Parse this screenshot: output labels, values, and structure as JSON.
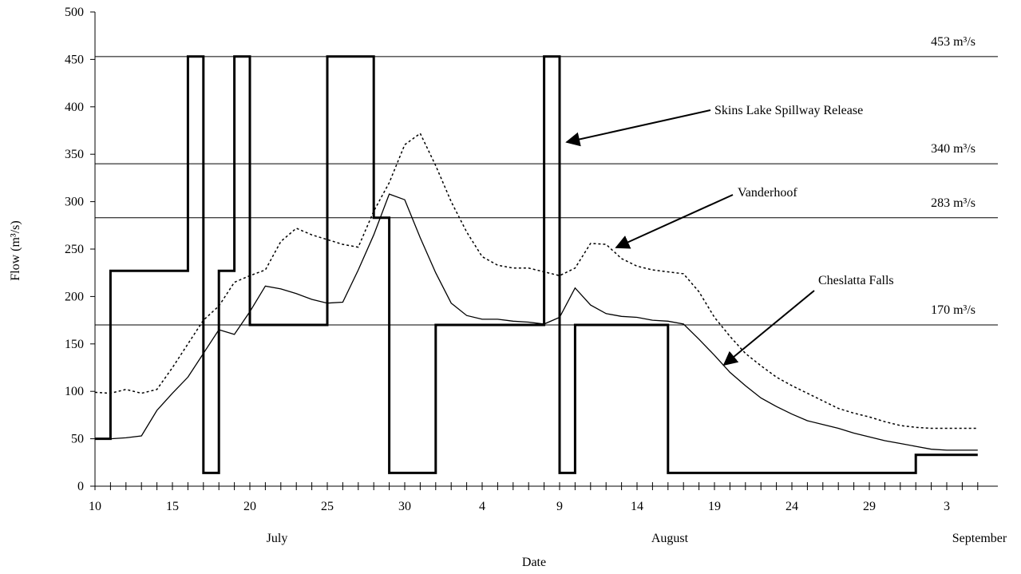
{
  "chart_data": {
    "type": "line",
    "xlabel": "Date",
    "ylabel": "Flow (m³/s)",
    "ylim": [
      0,
      500
    ],
    "yticks": [
      0,
      50,
      100,
      150,
      200,
      250,
      300,
      350,
      400,
      450,
      500
    ],
    "grid": false,
    "x_start": "July 10",
    "x_end": "September 5",
    "x_tick_labels": [
      "10",
      "15",
      "20",
      "25",
      "30",
      "4",
      "9",
      "14",
      "19",
      "24",
      "29",
      "3"
    ],
    "month_labels": [
      "July",
      "August",
      "September"
    ],
    "reference_lines": [
      {
        "value": 453,
        "label": "453 m³/s"
      },
      {
        "value": 340,
        "label": "340 m³/s"
      },
      {
        "value": 283,
        "label": "283 m³/s"
      },
      {
        "value": 170,
        "label": "170 m³/s"
      }
    ],
    "annotations": [
      {
        "text": "Skins Lake Spillway Release",
        "series": "Skins Lake Spillway Release"
      },
      {
        "text": "Vanderhoof",
        "series": "Vanderhoof"
      },
      {
        "text": "Cheslatta Falls",
        "series": "Cheslatta Falls"
      }
    ],
    "series": [
      {
        "name": "Skins Lake Spillway Release",
        "style": "step",
        "points": [
          [
            "Jul 10",
            50
          ],
          [
            "Jul 11",
            50
          ],
          [
            "Jul 11",
            227
          ],
          [
            "Jul 16",
            227
          ],
          [
            "Jul 16",
            453
          ],
          [
            "Jul 17",
            453
          ],
          [
            "Jul 17",
            14
          ],
          [
            "Jul 18",
            14
          ],
          [
            "Jul 18",
            227
          ],
          [
            "Jul 19",
            227
          ],
          [
            "Jul 19",
            453
          ],
          [
            "Jul 20",
            453
          ],
          [
            "Jul 20",
            170
          ],
          [
            "Jul 25",
            170
          ],
          [
            "Jul 25",
            453
          ],
          [
            "Jul 28",
            453
          ],
          [
            "Jul 28",
            283
          ],
          [
            "Jul 29",
            283
          ],
          [
            "Jul 29",
            14
          ],
          [
            "Aug 1",
            14
          ],
          [
            "Aug 1",
            170
          ],
          [
            "Aug 8",
            170
          ],
          [
            "Aug 8",
            453
          ],
          [
            "Aug 9",
            453
          ],
          [
            "Aug 9",
            14
          ],
          [
            "Aug 10",
            14
          ],
          [
            "Aug 10",
            170
          ],
          [
            "Aug 16",
            170
          ],
          [
            "Aug 16",
            14
          ],
          [
            "Sep 1",
            14
          ],
          [
            "Sep 1",
            33
          ],
          [
            "Sep 5",
            33
          ]
        ]
      },
      {
        "name": "Vanderhoof",
        "style": "dotted",
        "points": [
          [
            "Jul 10",
            99
          ],
          [
            "Jul 11",
            98
          ],
          [
            "Jul 12",
            102
          ],
          [
            "Jul 13",
            98
          ],
          [
            "Jul 14",
            102
          ],
          [
            "Jul 15",
            125
          ],
          [
            "Jul 16",
            150
          ],
          [
            "Jul 17",
            175
          ],
          [
            "Jul 18",
            190
          ],
          [
            "Jul 19",
            215
          ],
          [
            "Jul 20",
            222
          ],
          [
            "Jul 21",
            228
          ],
          [
            "Jul 22",
            258
          ],
          [
            "Jul 23",
            272
          ],
          [
            "Jul 24",
            265
          ],
          [
            "Jul 25",
            260
          ],
          [
            "Jul 26",
            255
          ],
          [
            "Jul 27",
            252
          ],
          [
            "Jul 28",
            290
          ],
          [
            "Jul 29",
            320
          ],
          [
            "Jul 30",
            360
          ],
          [
            "Jul 31",
            372
          ],
          [
            "Aug 1",
            338
          ],
          [
            "Aug 2",
            300
          ],
          [
            "Aug 3",
            268
          ],
          [
            "Aug 4",
            242
          ],
          [
            "Aug 5",
            233
          ],
          [
            "Aug 6",
            230
          ],
          [
            "Aug 7",
            230
          ],
          [
            "Aug 8",
            226
          ],
          [
            "Aug 9",
            222
          ],
          [
            "Aug 10",
            230
          ],
          [
            "Aug 11",
            256
          ],
          [
            "Aug 12",
            255
          ],
          [
            "Aug 13",
            240
          ],
          [
            "Aug 14",
            232
          ],
          [
            "Aug 15",
            228
          ],
          [
            "Aug 16",
            226
          ],
          [
            "Aug 17",
            224
          ],
          [
            "Aug 18",
            205
          ],
          [
            "Aug 19",
            178
          ],
          [
            "Aug 20",
            158
          ],
          [
            "Aug 21",
            140
          ],
          [
            "Aug 22",
            127
          ],
          [
            "Aug 23",
            115
          ],
          [
            "Aug 24",
            106
          ],
          [
            "Aug 25",
            98
          ],
          [
            "Aug 26",
            90
          ],
          [
            "Aug 27",
            82
          ],
          [
            "Aug 28",
            77
          ],
          [
            "Aug 29",
            73
          ],
          [
            "Aug 30",
            68
          ],
          [
            "Aug 31",
            64
          ],
          [
            "Sep 1",
            62
          ],
          [
            "Sep 2",
            61
          ],
          [
            "Sep 3",
            61
          ],
          [
            "Sep 4",
            61
          ],
          [
            "Sep 5",
            61
          ]
        ]
      },
      {
        "name": "Cheslatta Falls",
        "style": "solid",
        "points": [
          [
            "Jul 10",
            50
          ],
          [
            "Jul 11",
            50
          ],
          [
            "Jul 12",
            51
          ],
          [
            "Jul 13",
            53
          ],
          [
            "Jul 14",
            80
          ],
          [
            "Jul 15",
            98
          ],
          [
            "Jul 16",
            115
          ],
          [
            "Jul 17",
            140
          ],
          [
            "Jul 18",
            165
          ],
          [
            "Jul 19",
            160
          ],
          [
            "Jul 20",
            184
          ],
          [
            "Jul 21",
            211
          ],
          [
            "Jul 22",
            208
          ],
          [
            "Jul 23",
            203
          ],
          [
            "Jul 24",
            197
          ],
          [
            "Jul 25",
            193
          ],
          [
            "Jul 26",
            194
          ],
          [
            "Jul 27",
            228
          ],
          [
            "Jul 28",
            265
          ],
          [
            "Jul 29",
            308
          ],
          [
            "Jul 30",
            302
          ],
          [
            "Jul 31",
            262
          ],
          [
            "Aug 1",
            225
          ],
          [
            "Aug 2",
            193
          ],
          [
            "Aug 3",
            180
          ],
          [
            "Aug 4",
            176
          ],
          [
            "Aug 5",
            176
          ],
          [
            "Aug 6",
            174
          ],
          [
            "Aug 7",
            173
          ],
          [
            "Aug 8",
            171
          ],
          [
            "Aug 9",
            178
          ],
          [
            "Aug 10",
            209
          ],
          [
            "Aug 11",
            191
          ],
          [
            "Aug 12",
            182
          ],
          [
            "Aug 13",
            179
          ],
          [
            "Aug 14",
            178
          ],
          [
            "Aug 15",
            175
          ],
          [
            "Aug 16",
            174
          ],
          [
            "Aug 17",
            171
          ],
          [
            "Aug 18",
            155
          ],
          [
            "Aug 19",
            138
          ],
          [
            "Aug 20",
            120
          ],
          [
            "Aug 21",
            106
          ],
          [
            "Aug 22",
            93
          ],
          [
            "Aug 23",
            84
          ],
          [
            "Aug 24",
            76
          ],
          [
            "Aug 25",
            69
          ],
          [
            "Aug 26",
            65
          ],
          [
            "Aug 27",
            61
          ],
          [
            "Aug 28",
            56
          ],
          [
            "Aug 29",
            52
          ],
          [
            "Aug 30",
            48
          ],
          [
            "Aug 31",
            45
          ],
          [
            "Sep 1",
            42
          ],
          [
            "Sep 2",
            39
          ],
          [
            "Sep 3",
            38
          ],
          [
            "Sep 4",
            38
          ],
          [
            "Sep 5",
            38
          ]
        ]
      }
    ]
  }
}
